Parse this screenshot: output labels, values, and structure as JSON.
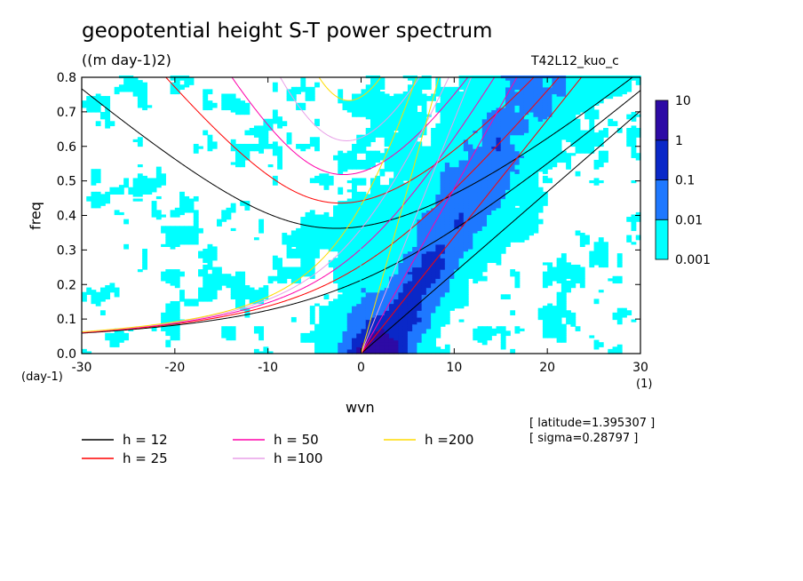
{
  "chart_data": {
    "type": "heatmap",
    "title": "geopotential height S-T power spectrum",
    "subtitle": "((m day-1)2)",
    "run_label": "T42L12_kuo_c",
    "xlabel": "wvn",
    "ylabel": "freq",
    "x_unit": "(1)",
    "y_unit": "(day-1)",
    "xlim": [
      -30,
      30
    ],
    "ylim": [
      0,
      0.8
    ],
    "x_ticks": [
      -30,
      -20,
      -10,
      0,
      10,
      20,
      30
    ],
    "x_tick_labels": [
      "-30",
      "-20",
      "-10",
      "0",
      "10",
      "20",
      "30"
    ],
    "y_ticks": [
      0,
      0.1,
      0.2,
      0.3,
      0.4,
      0.5,
      0.6,
      0.7,
      0.8
    ],
    "y_tick_labels": [
      "0.0",
      "0.1",
      "0.2",
      "0.3",
      "0.4",
      "0.5",
      "0.6",
      "0.7",
      "0.8"
    ],
    "colorbar": {
      "levels": [
        "0.001",
        "0.01",
        "0.1",
        "1",
        "10"
      ],
      "colors": [
        "#00ffff",
        "#1e78ff",
        "#0a28c8",
        "#2d0aa5"
      ]
    },
    "info": [
      "[ latitude=1.395307 ]",
      "[ sigma=0.28797 ]"
    ],
    "dispersion_curves": [
      {
        "name": "h = 12",
        "h": 12,
        "color": "#000000"
      },
      {
        "name": "h = 25",
        "h": 25,
        "color": "#ff0000"
      },
      {
        "name": "h = 50",
        "h": 50,
        "color": "#ff00aa"
      },
      {
        "name": "h =100",
        "h": 100,
        "color": "#e8a0e8"
      },
      {
        "name": "h =200",
        "h": 200,
        "color": "#ffdc00"
      }
    ]
  }
}
